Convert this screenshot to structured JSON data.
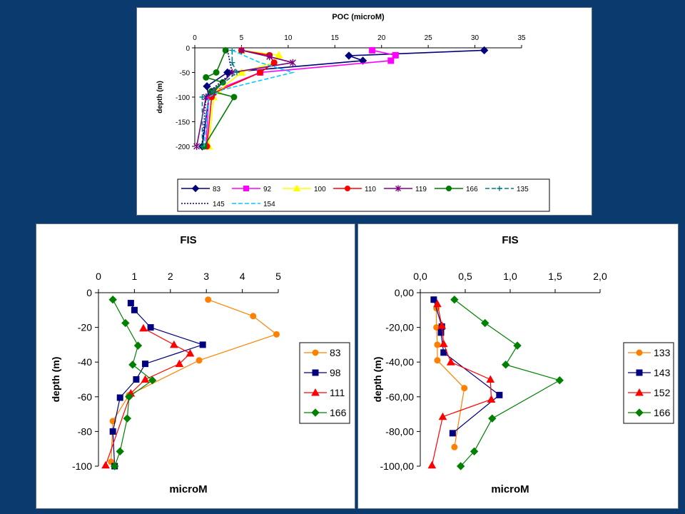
{
  "chart_data": [
    {
      "type": "line",
      "title": "POC (microM)",
      "xlabel": "",
      "ylabel": "depth (m)",
      "xlim": [
        0,
        35
      ],
      "ylim": [
        -200,
        0
      ],
      "x_ticks": [
        "0",
        "5",
        "10",
        "15",
        "20",
        "25",
        "30",
        "35"
      ],
      "y_ticks": [
        "0",
        "-50",
        "-100",
        "-150",
        "-200"
      ],
      "legend_position": "bottom",
      "series": [
        {
          "name": "83",
          "color": "#00007a",
          "marker": "diamond",
          "dash": "solid",
          "points": [
            [
              31,
              -5
            ],
            [
              16.5,
              -16
            ],
            [
              18,
              -26
            ],
            [
              3.5,
              -50
            ],
            [
              1.3,
              -78
            ],
            [
              1.5,
              -100
            ],
            [
              0.8,
              -200
            ]
          ]
        },
        {
          "name": "92",
          "color": "#ff00ff",
          "marker": "square",
          "dash": "solid",
          "points": [
            [
              19,
              -5
            ],
            [
              21.5,
              -15
            ],
            [
              21,
              -26
            ],
            [
              7,
              -50
            ],
            [
              2,
              -88
            ],
            [
              1.5,
              -100
            ],
            [
              1.2,
              -200
            ]
          ]
        },
        {
          "name": "100",
          "color": "#ffff00",
          "marker": "triangle",
          "dash": "solid",
          "points": [
            [
              5,
              -5
            ],
            [
              9,
              -15
            ],
            [
              8.5,
              -30
            ],
            [
              5,
              -50
            ],
            [
              2.5,
              -88
            ],
            [
              2,
              -100
            ],
            [
              1.5,
              -200
            ]
          ]
        },
        {
          "name": "110",
          "color": "#ff0000",
          "marker": "circle",
          "dash": "solid",
          "points": [
            [
              5,
              -5
            ],
            [
              8,
              -15
            ],
            [
              8.5,
              -30
            ],
            [
              7,
              -50
            ],
            [
              2,
              -92
            ],
            [
              1.8,
              -100
            ],
            [
              1.3,
              -200
            ]
          ]
        },
        {
          "name": "119",
          "color": "#800080",
          "marker": "star",
          "dash": "solid",
          "points": [
            [
              5,
              -5
            ],
            [
              8,
              -18
            ],
            [
              10.5,
              -30
            ],
            [
              4,
              -50
            ],
            [
              2,
              -90
            ],
            [
              1.2,
              -100
            ],
            [
              0.2,
              -200
            ]
          ]
        },
        {
          "name": "166",
          "color": "#007a00",
          "marker": "circle",
          "dash": "solid",
          "points": [
            [
              3.3,
              -5
            ],
            [
              2.3,
              -50
            ],
            [
              1.2,
              -60
            ],
            [
              3,
              -70
            ],
            [
              1.8,
              -88
            ],
            [
              4.2,
              -100
            ],
            [
              1,
              -200
            ]
          ]
        },
        {
          "name": "135",
          "color": "#008080",
          "marker": "plus",
          "dash": "dash",
          "points": [
            [
              4,
              -5
            ],
            [
              4,
              -30
            ],
            [
              4.5,
              -50
            ],
            [
              2,
              -88
            ],
            [
              0.8,
              -100
            ],
            [
              0.8,
              -200
            ]
          ]
        },
        {
          "name": "145",
          "color": "#00007a",
          "marker": "none",
          "dash": "dot",
          "points": [
            [
              3.5,
              -5
            ],
            [
              4,
              -50
            ],
            [
              1.8,
              -85
            ],
            [
              1.2,
              -100
            ],
            [
              0.8,
              -200
            ]
          ]
        },
        {
          "name": "154",
          "color": "#00ccff",
          "marker": "none",
          "dash": "dash",
          "points": [
            [
              4,
              -5
            ],
            [
              7,
              -30
            ],
            [
              10.5,
              -50
            ],
            [
              3,
              -85
            ],
            [
              1.5,
              -100
            ],
            [
              1,
              -200
            ]
          ]
        }
      ]
    },
    {
      "type": "line",
      "title": "FIS",
      "xlabel": "microM",
      "ylabel": "depth (m)",
      "xlim": [
        0,
        5
      ],
      "ylim": [
        -100,
        0
      ],
      "x_ticks": [
        "0",
        "1",
        "2",
        "3",
        "4",
        "5"
      ],
      "y_ticks": [
        "0",
        "-20",
        "-40",
        "-60",
        "-80",
        "-100"
      ],
      "legend_position": "right",
      "series": [
        {
          "name": "83",
          "color": "#ff8000",
          "marker": "circle",
          "points": [
            [
              3.05,
              -4
            ],
            [
              4.3,
              -13.5
            ],
            [
              4.95,
              -24
            ],
            [
              2.8,
              -39
            ],
            [
              0.85,
              -59
            ],
            [
              0.4,
              -74
            ],
            [
              0.35,
              -97.5
            ]
          ]
        },
        {
          "name": "98",
          "color": "#000080",
          "marker": "square",
          "points": [
            [
              0.9,
              -6
            ],
            [
              1.0,
              -10
            ],
            [
              1.45,
              -20
            ],
            [
              2.9,
              -30
            ],
            [
              1.3,
              -41
            ],
            [
              1.05,
              -50
            ],
            [
              0.6,
              -60.5
            ],
            [
              0.4,
              -80
            ],
            [
              0.45,
              -100
            ]
          ]
        },
        {
          "name": "111",
          "color": "#ff0000",
          "marker": "triangle",
          "points": [
            [
              1.25,
              -20.5
            ],
            [
              2.1,
              -30
            ],
            [
              2.55,
              -35
            ],
            [
              2.25,
              -41
            ],
            [
              1.3,
              -50
            ],
            [
              0.9,
              -58
            ],
            [
              0.2,
              -99.5
            ]
          ]
        },
        {
          "name": "166",
          "color": "#008000",
          "marker": "diamond",
          "points": [
            [
              0.4,
              -4
            ],
            [
              0.75,
              -17.5
            ],
            [
              1.1,
              -30.5
            ],
            [
              0.95,
              -41.5
            ],
            [
              1.5,
              -50.5
            ],
            [
              0.85,
              -60
            ],
            [
              0.8,
              -72.5
            ],
            [
              0.6,
              -91.5
            ],
            [
              0.45,
              -100
            ]
          ]
        }
      ]
    },
    {
      "type": "line",
      "title": "FIS",
      "xlabel": "microM",
      "ylabel": "depth (m)",
      "xlim": [
        0,
        2
      ],
      "ylim": [
        -100,
        0
      ],
      "x_ticks": [
        "0,0",
        "0,5",
        "1,0",
        "1,5",
        "2,0"
      ],
      "y_ticks": [
        "0,00",
        "-20,00",
        "-40,00",
        "-60,00",
        "-80,00",
        "-100,00"
      ],
      "legend_position": "right",
      "series": [
        {
          "name": "133",
          "color": "#ff8000",
          "marker": "circle",
          "points": [
            [
              0.15,
              -4
            ],
            [
              0.18,
              -9
            ],
            [
              0.18,
              -20
            ],
            [
              0.19,
              -30
            ],
            [
              0.19,
              -39
            ],
            [
              0.49,
              -55
            ],
            [
              0.38,
              -89
            ]
          ]
        },
        {
          "name": "143",
          "color": "#000080",
          "marker": "square",
          "points": [
            [
              0.15,
              -4
            ],
            [
              0.24,
              -19.5
            ],
            [
              0.23,
              -23
            ],
            [
              0.26,
              -34.5
            ],
            [
              0.88,
              -59
            ],
            [
              0.36,
              -81
            ]
          ]
        },
        {
          "name": "152",
          "color": "#ff0000",
          "marker": "triangle",
          "points": [
            [
              0.19,
              -6.5
            ],
            [
              0.24,
              -19
            ],
            [
              0.26,
              -29.5
            ],
            [
              0.34,
              -40
            ],
            [
              0.78,
              -50
            ],
            [
              0.79,
              -61.5
            ],
            [
              0.25,
              -71.5
            ],
            [
              0.13,
              -99.5
            ]
          ]
        },
        {
          "name": "166",
          "color": "#008000",
          "marker": "diamond",
          "points": [
            [
              0.38,
              -4
            ],
            [
              0.72,
              -17.5
            ],
            [
              1.08,
              -30.5
            ],
            [
              0.95,
              -41.5
            ],
            [
              1.55,
              -50.5
            ],
            [
              0.8,
              -72.5
            ],
            [
              0.6,
              -91.5
            ],
            [
              0.45,
              -100
            ]
          ]
        }
      ]
    }
  ]
}
